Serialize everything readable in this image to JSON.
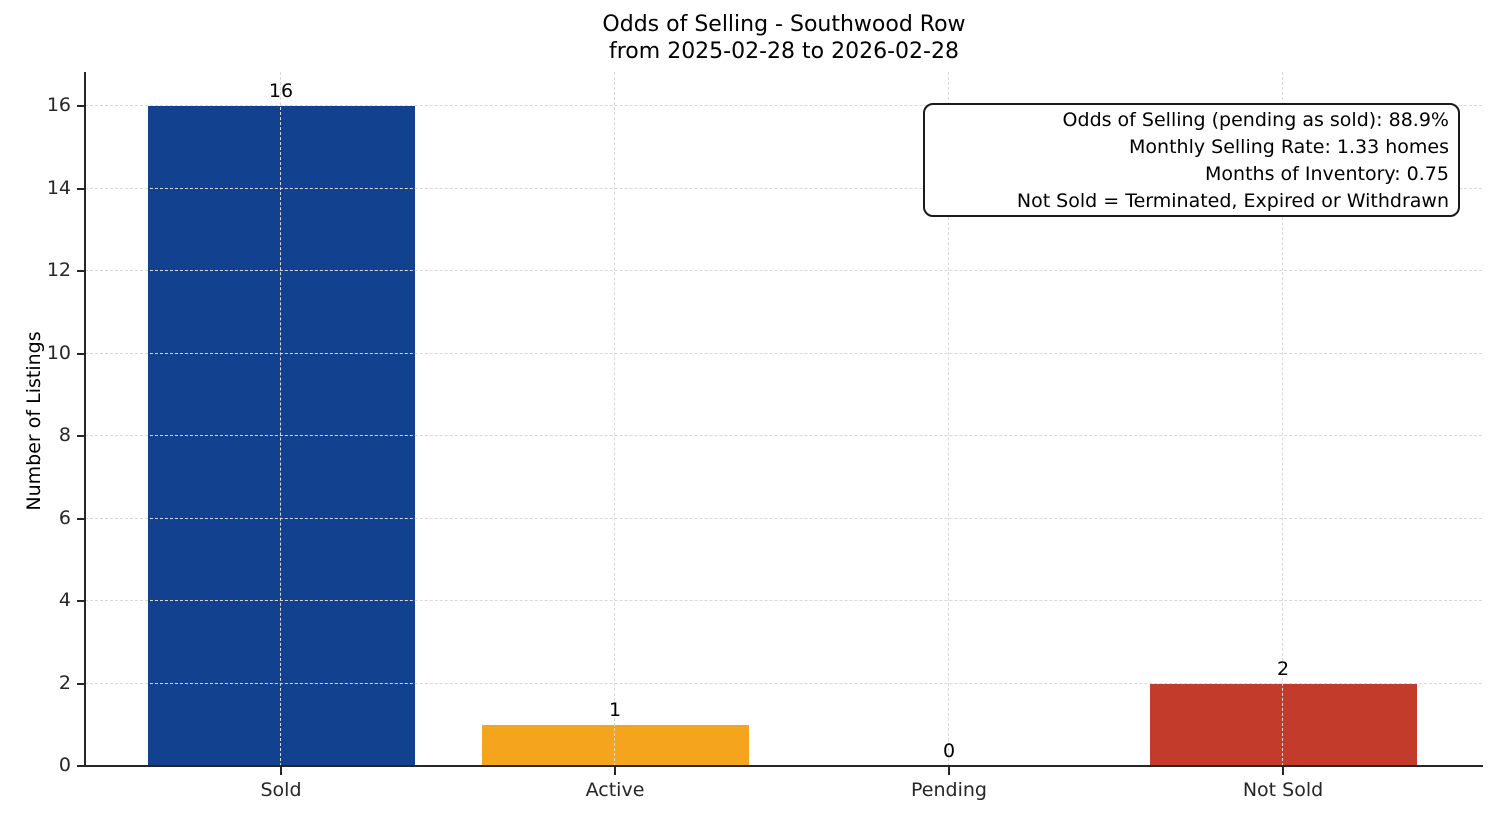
{
  "chart_data": {
    "type": "bar",
    "title": "Odds of Selling - Southwood Row",
    "subtitle": "from 2025-02-28 to 2026-02-28",
    "categories": [
      "Sold",
      "Active",
      "Pending",
      "Not Sold"
    ],
    "values": [
      16,
      1,
      0,
      2
    ],
    "bar_labels": [
      "16",
      "1",
      "0",
      "2"
    ],
    "colors": [
      "#12418f",
      "#f4a41d",
      null,
      "#c23b2b"
    ],
    "xlabel": "",
    "ylabel": "Number of Listings",
    "ylim": [
      0,
      16.8
    ],
    "yticks": [
      0,
      2,
      4,
      6,
      8,
      10,
      12,
      14,
      16
    ],
    "grid": true,
    "grid_style": "dashed",
    "grid_color": "#d9d9d9",
    "axis_color": "#262626",
    "background": "#ffffff",
    "legend": null,
    "annotation": {
      "position": "top-right",
      "lines": [
        "Odds of Selling (pending as sold): 88.9%",
        "Monthly Selling Rate: 1.33 homes",
        "Months of Inventory: 0.75",
        "Not Sold = Terminated, Expired or Withdrawn"
      ]
    }
  }
}
